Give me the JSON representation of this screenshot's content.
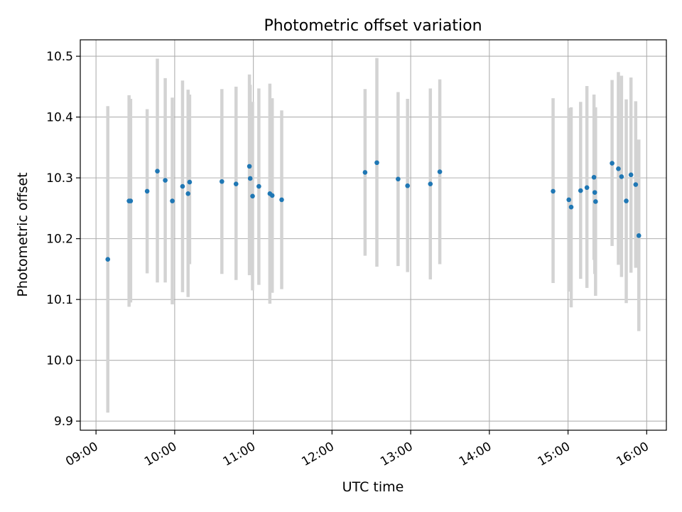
{
  "chart_data": {
    "type": "scatter",
    "title": "Photometric offset variation",
    "xlabel": "UTC time",
    "ylabel": "Photometric offset",
    "xlim": [
      8.8,
      16.25
    ],
    "ylim": [
      9.885,
      10.527
    ],
    "x_ticks": [
      {
        "value": 9,
        "label": "09:00"
      },
      {
        "value": 10,
        "label": "10:00"
      },
      {
        "value": 11,
        "label": "11:00"
      },
      {
        "value": 12,
        "label": "12:00"
      },
      {
        "value": 13,
        "label": "13:00"
      },
      {
        "value": 14,
        "label": "14:00"
      },
      {
        "value": 15,
        "label": "15:00"
      },
      {
        "value": 16,
        "label": "16:00"
      }
    ],
    "y_ticks": [
      {
        "value": 9.9,
        "label": "9.9"
      },
      {
        "value": 10.0,
        "label": "10.0"
      },
      {
        "value": 10.1,
        "label": "10.1"
      },
      {
        "value": 10.2,
        "label": "10.2"
      },
      {
        "value": 10.3,
        "label": "10.3"
      },
      {
        "value": 10.4,
        "label": "10.4"
      },
      {
        "value": 10.5,
        "label": "10.5"
      }
    ],
    "grid": true,
    "colors": {
      "point": "#1f77b4",
      "errorbar": "#d3d3d3",
      "grid": "#b0b0b0"
    },
    "points": [
      {
        "x": 9.15,
        "y": 10.166,
        "lo": 9.914,
        "hi": 10.418
      },
      {
        "x": 9.42,
        "y": 10.262,
        "lo": 10.088,
        "hi": 10.436
      },
      {
        "x": 9.44,
        "y": 10.262,
        "lo": 10.095,
        "hi": 10.43
      },
      {
        "x": 9.65,
        "y": 10.278,
        "lo": 10.143,
        "hi": 10.413
      },
      {
        "x": 9.78,
        "y": 10.311,
        "lo": 10.128,
        "hi": 10.496
      },
      {
        "x": 9.88,
        "y": 10.296,
        "lo": 10.128,
        "hi": 10.464
      },
      {
        "x": 9.97,
        "y": 10.262,
        "lo": 10.092,
        "hi": 10.432
      },
      {
        "x": 10.1,
        "y": 10.286,
        "lo": 10.112,
        "hi": 10.46
      },
      {
        "x": 10.17,
        "y": 10.274,
        "lo": 10.104,
        "hi": 10.445
      },
      {
        "x": 10.19,
        "y": 10.293,
        "lo": 10.158,
        "hi": 10.437
      },
      {
        "x": 10.6,
        "y": 10.294,
        "lo": 10.142,
        "hi": 10.446
      },
      {
        "x": 10.78,
        "y": 10.29,
        "lo": 10.132,
        "hi": 10.45
      },
      {
        "x": 10.95,
        "y": 10.319,
        "lo": 10.14,
        "hi": 10.47
      },
      {
        "x": 10.96,
        "y": 10.299,
        "lo": 10.145,
        "hi": 10.453
      },
      {
        "x": 10.99,
        "y": 10.27,
        "lo": 10.115,
        "hi": 10.425
      },
      {
        "x": 11.07,
        "y": 10.286,
        "lo": 10.124,
        "hi": 10.447
      },
      {
        "x": 11.21,
        "y": 10.274,
        "lo": 10.093,
        "hi": 10.455
      },
      {
        "x": 11.24,
        "y": 10.271,
        "lo": 10.111,
        "hi": 10.431
      },
      {
        "x": 11.36,
        "y": 10.264,
        "lo": 10.117,
        "hi": 10.411
      },
      {
        "x": 12.42,
        "y": 10.309,
        "lo": 10.172,
        "hi": 10.446
      },
      {
        "x": 12.57,
        "y": 10.325,
        "lo": 10.154,
        "hi": 10.497
      },
      {
        "x": 12.84,
        "y": 10.298,
        "lo": 10.155,
        "hi": 10.441
      },
      {
        "x": 12.96,
        "y": 10.287,
        "lo": 10.145,
        "hi": 10.43
      },
      {
        "x": 13.25,
        "y": 10.29,
        "lo": 10.133,
        "hi": 10.447
      },
      {
        "x": 13.37,
        "y": 10.31,
        "lo": 10.158,
        "hi": 10.462
      },
      {
        "x": 14.81,
        "y": 10.278,
        "lo": 10.127,
        "hi": 10.431
      },
      {
        "x": 15.01,
        "y": 10.264,
        "lo": 10.113,
        "hi": 10.415
      },
      {
        "x": 15.04,
        "y": 10.252,
        "lo": 10.087,
        "hi": 10.416
      },
      {
        "x": 15.16,
        "y": 10.279,
        "lo": 10.134,
        "hi": 10.425
      },
      {
        "x": 15.24,
        "y": 10.284,
        "lo": 10.119,
        "hi": 10.451
      },
      {
        "x": 15.33,
        "y": 10.301,
        "lo": 10.165,
        "hi": 10.437
      },
      {
        "x": 15.34,
        "y": 10.276,
        "lo": 10.142,
        "hi": 10.41
      },
      {
        "x": 15.35,
        "y": 10.261,
        "lo": 10.106,
        "hi": 10.416
      },
      {
        "x": 15.56,
        "y": 10.324,
        "lo": 10.188,
        "hi": 10.461
      },
      {
        "x": 15.64,
        "y": 10.315,
        "lo": 10.157,
        "hi": 10.474
      },
      {
        "x": 15.68,
        "y": 10.302,
        "lo": 10.137,
        "hi": 10.468
      },
      {
        "x": 15.74,
        "y": 10.262,
        "lo": 10.094,
        "hi": 10.429
      },
      {
        "x": 15.8,
        "y": 10.305,
        "lo": 10.144,
        "hi": 10.465
      },
      {
        "x": 15.86,
        "y": 10.289,
        "lo": 10.152,
        "hi": 10.426
      },
      {
        "x": 15.9,
        "y": 10.205,
        "lo": 10.048,
        "hi": 10.363
      }
    ]
  }
}
